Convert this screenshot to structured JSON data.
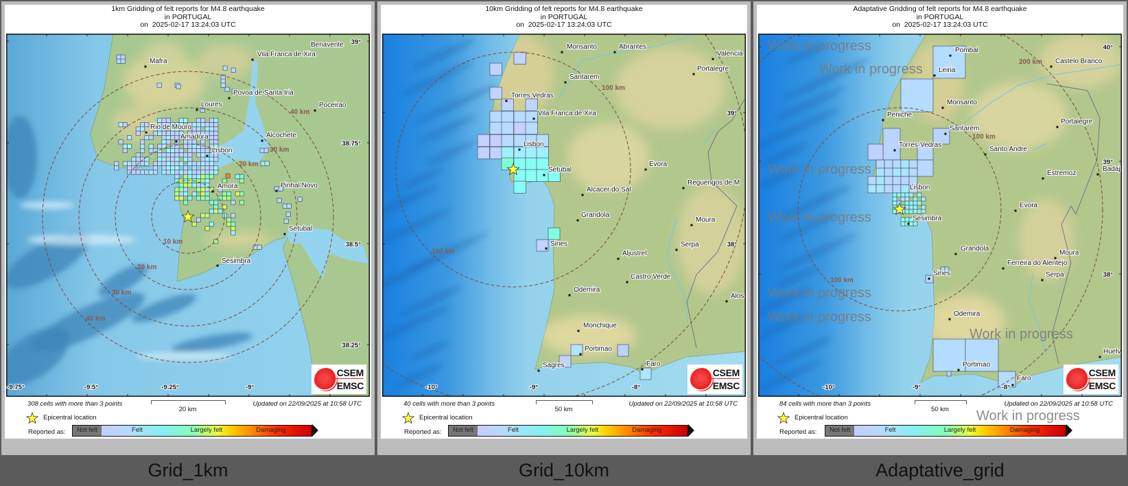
{
  "panels": [
    {
      "label": "Grid_1km",
      "title": [
        "1km Gridding of felt reports for M4.8 earthquake",
        "in PORTUGAL",
        "on  2025-02-17 13:24:03 UTC"
      ],
      "cells_text": "308 cells with more than 3 points",
      "scale": "20 km",
      "updated": "Updated on 22/09/2025 at 10:58 UTC",
      "cities": [
        "Mafra",
        "Vila Franca de Xira",
        "Benavente",
        "Povoa de Santa Iria",
        "Loures",
        "Poceirao",
        "Rio de Mouro",
        "Amadora",
        "Lisbon",
        "Alcochete",
        "Amora",
        "Pinhal Novo",
        "Setubal",
        "Sesimbra"
      ],
      "distance_labels": [
        "10 km",
        "20 km",
        "30 km",
        "40 km",
        "20 km",
        "30 km",
        "40 km"
      ],
      "lat_labels": [
        "39°",
        "38.75°",
        "38.5°",
        "38.25°"
      ],
      "lon_labels": [
        "-9.75°",
        "-9.5°",
        "-9.25°",
        "-9°"
      ]
    },
    {
      "label": "Grid_10km",
      "title": [
        "10km Gridding of felt reports for M4.8 earthquake",
        "in PORTUGAL",
        "on  2025-02-17 13:24:03 UTC"
      ],
      "cells_text": "40 cells with more than 3 points",
      "scale": "50 km",
      "updated": "Updated on 22/09/2025 at 10:58 UTC",
      "cities": [
        "Monsanto",
        "Abrantes",
        "Valencia",
        "Portalegre",
        "Santarem",
        "Torres Vedras",
        "Vila Franca de Xira",
        "Lisbon",
        "Setubal",
        "Evora",
        "Reguengos de M",
        "Alcacer do Sal",
        "Grandola",
        "Sines",
        "Moura",
        "Aljustrel",
        "Serpa",
        "Castro Verde",
        "Odemira",
        "Alos",
        "Monchique",
        "Portimao",
        "Sagres",
        "Faro"
      ],
      "distance_labels": [
        "100 km",
        "100 km"
      ],
      "lat_labels": [
        "39°",
        "38°"
      ],
      "lon_labels": [
        "-10°",
        "-9°",
        "-8°"
      ]
    },
    {
      "label": "Adaptative_grid",
      "title": [
        "Adaptative Gridding of felt reports for M4.8 earthquake",
        "in PORTUGAL",
        "on  2025-02-17 13:24:03 UTC"
      ],
      "cells_text": "84 cells with more than 3 points",
      "scale": "50 km",
      "updated": "Updated on 22/09/2025 at 10:58 UTC",
      "cities": [
        "Pombal",
        "Leiria",
        "Castelo Branco",
        "Monsanto",
        "Peniche",
        "Portalegre",
        "Santarem",
        "Torres-Vedras",
        "Santo Andre",
        "Estremoz",
        "Badaj",
        "Lisbon",
        "Evora",
        "Sesimbra",
        "Grandola",
        "Moura",
        "Ferreira do Alentejo",
        "Serpa",
        "Sines",
        "Odemira",
        "Huelv",
        "Portimao",
        "Faro"
      ],
      "distance_labels": [
        "100 km",
        "100 km",
        "200 km"
      ],
      "lat_labels": [
        "40°",
        "39°",
        "38°"
      ],
      "lon_labels": [
        "-10°",
        "-9°",
        "-8°"
      ],
      "watermark": "Work in progress"
    }
  ],
  "legend": {
    "epicenter": "Epicentral location",
    "reported_as": "Reported as:",
    "classes": [
      "Not felt",
      "Felt",
      "Largely felt",
      "Damaging"
    ]
  },
  "logo": [
    "CSEM",
    "EMSC"
  ],
  "colors": {
    "epicenter_star": "#ffff33",
    "distance_circle": "#7a4a40",
    "sea": "#8fd0ea",
    "land": "#a8c890",
    "cell_felt": "#c0d4ff",
    "cell_cyan": "#a0f0ff",
    "cell_largely_felt": "#a0ff90",
    "cell_damaging": "#f08020",
    "not_felt": "#777777"
  }
}
